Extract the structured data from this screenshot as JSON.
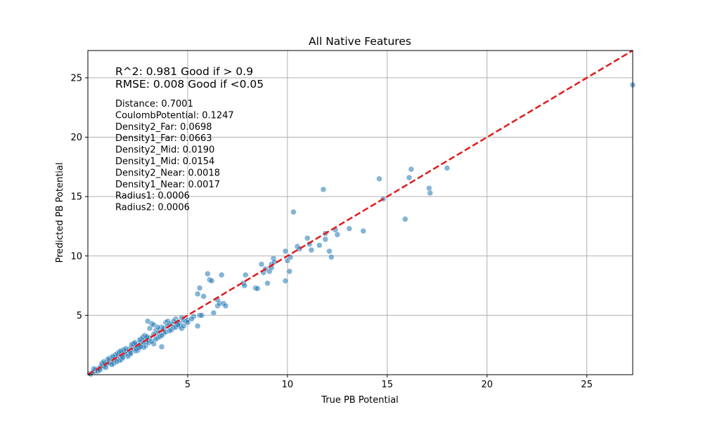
{
  "chart_data": {
    "type": "scatter",
    "title": "All Native Features",
    "xlabel": "True PB Potential",
    "ylabel": "Predicted PB Potential",
    "xlim": [
      0.0,
      27.3
    ],
    "ylim": [
      0.0,
      27.3
    ],
    "xticks": [
      5,
      10,
      15,
      20,
      25
    ],
    "yticks": [
      5,
      10,
      15,
      20,
      25
    ],
    "grid": true,
    "point_color": "#1f77b4",
    "reference_line": {
      "style": "dashed",
      "color": "#e31a1c",
      "from": [
        0,
        0
      ],
      "to": [
        27.3,
        27.3
      ]
    },
    "stats": [
      "R^2: 0.981 Good if > 0.9",
      "RMSE: 0.008 Good if <0.05"
    ],
    "feature_importances": [
      "Distance: 0.7001",
      "CoulombPotential: 0.1247",
      "Density2_Far: 0.0698",
      "Density1_Far: 0.0663",
      "Density2_Mid: 0.0190",
      "Density1_Mid: 0.0154",
      "Density2_Near: 0.0018",
      "Density1_Near: 0.0017",
      "Radius1: 0.0006",
      "Radius2: 0.0006"
    ],
    "points": [
      [
        0.1,
        0.1
      ],
      [
        0.15,
        0.05
      ],
      [
        0.2,
        0.15
      ],
      [
        0.25,
        0.2
      ],
      [
        0.3,
        0.28
      ],
      [
        0.35,
        0.3
      ],
      [
        0.4,
        0.42
      ],
      [
        0.45,
        0.38
      ],
      [
        0.5,
        0.5
      ],
      [
        0.55,
        0.52
      ],
      [
        0.6,
        0.55
      ],
      [
        0.65,
        0.7
      ],
      [
        0.7,
        0.65
      ],
      [
        0.75,
        0.8
      ],
      [
        0.8,
        0.72
      ],
      [
        0.85,
        0.9
      ],
      [
        0.9,
        0.85
      ],
      [
        0.95,
        1.0
      ],
      [
        1.0,
        0.95
      ],
      [
        1.05,
        1.1
      ],
      [
        1.1,
        1.0
      ],
      [
        1.15,
        1.2
      ],
      [
        1.2,
        1.15
      ],
      [
        1.25,
        1.3
      ],
      [
        1.3,
        1.2
      ],
      [
        1.35,
        1.45
      ],
      [
        1.4,
        1.35
      ],
      [
        1.45,
        1.5
      ],
      [
        1.5,
        1.4
      ],
      [
        1.55,
        1.6
      ],
      [
        1.6,
        1.55
      ],
      [
        1.65,
        1.7
      ],
      [
        1.7,
        1.6
      ],
      [
        1.75,
        1.85
      ],
      [
        1.8,
        1.7
      ],
      [
        1.85,
        1.9
      ],
      [
        1.9,
        1.8
      ],
      [
        1.95,
        2.0
      ],
      [
        2.0,
        1.9
      ],
      [
        2.05,
        2.1
      ],
      [
        2.1,
        2.0
      ],
      [
        2.15,
        2.25
      ],
      [
        2.2,
        2.1
      ],
      [
        2.25,
        2.3
      ],
      [
        2.3,
        2.2
      ],
      [
        2.35,
        2.4
      ],
      [
        2.4,
        2.3
      ],
      [
        2.45,
        2.5
      ],
      [
        2.5,
        2.45
      ],
      [
        2.55,
        2.6
      ],
      [
        2.6,
        2.5
      ],
      [
        2.65,
        2.75
      ],
      [
        2.7,
        2.6
      ],
      [
        2.75,
        2.8
      ],
      [
        2.8,
        2.7
      ],
      [
        2.85,
        2.9
      ],
      [
        2.9,
        2.8
      ],
      [
        2.95,
        3.0
      ],
      [
        3.0,
        2.9
      ],
      [
        3.1,
        3.1
      ],
      [
        0.3,
        0.5
      ],
      [
        0.5,
        0.3
      ],
      [
        0.7,
        0.95
      ],
      [
        0.9,
        0.6
      ],
      [
        1.1,
        1.4
      ],
      [
        1.3,
        0.95
      ],
      [
        1.5,
        1.75
      ],
      [
        1.7,
        1.3
      ],
      [
        1.9,
        2.2
      ],
      [
        2.1,
        1.7
      ],
      [
        2.3,
        2.6
      ],
      [
        2.5,
        2.05
      ],
      [
        2.7,
        3.0
      ],
      [
        2.9,
        2.45
      ],
      [
        1.0,
        1.3
      ],
      [
        1.2,
        0.85
      ],
      [
        1.4,
        1.7
      ],
      [
        1.6,
        1.2
      ],
      [
        1.8,
        2.1
      ],
      [
        2.0,
        1.55
      ],
      [
        2.2,
        2.55
      ],
      [
        2.4,
        2.0
      ],
      [
        2.6,
        2.95
      ],
      [
        2.8,
        2.3
      ],
      [
        0.8,
        1.1
      ],
      [
        0.6,
        0.4
      ],
      [
        1.75,
        1.45
      ],
      [
        2.35,
        2.7
      ],
      [
        1.55,
        1.9
      ],
      [
        2.15,
        1.8
      ],
      [
        1.25,
        1.55
      ],
      [
        1.45,
        1.1
      ],
      [
        1.65,
        2.0
      ],
      [
        2.45,
        2.15
      ],
      [
        2.75,
        3.15
      ],
      [
        2.55,
        2.25
      ],
      [
        2.85,
        3.3
      ],
      [
        2.65,
        2.35
      ],
      [
        2.95,
        3.2
      ],
      [
        3.05,
        2.7
      ],
      [
        3.0,
        4.5
      ],
      [
        3.2,
        4.3
      ],
      [
        3.3,
        4.2
      ],
      [
        3.1,
        3.9
      ],
      [
        3.4,
        3.7
      ],
      [
        3.5,
        3.5
      ],
      [
        3.6,
        3.8
      ],
      [
        3.7,
        4.0
      ],
      [
        3.8,
        3.9
      ],
      [
        3.9,
        4.4
      ],
      [
        4.0,
        4.5
      ],
      [
        4.1,
        4.3
      ],
      [
        4.2,
        4.2
      ],
      [
        4.3,
        4.0
      ],
      [
        4.4,
        4.7
      ],
      [
        4.5,
        4.4
      ],
      [
        4.6,
        4.3
      ],
      [
        4.7,
        4.8
      ],
      [
        4.8,
        4.6
      ],
      [
        4.9,
        4.5
      ],
      [
        5.0,
        4.6
      ],
      [
        4.6,
        4.1
      ],
      [
        4.7,
        3.9
      ],
      [
        3.7,
        2.35
      ],
      [
        3.3,
        2.6
      ],
      [
        3.5,
        3.1
      ],
      [
        3.2,
        2.8
      ],
      [
        3.4,
        3.0
      ],
      [
        3.6,
        3.2
      ],
      [
        3.8,
        3.5
      ],
      [
        3.9,
        3.6
      ],
      [
        4.0,
        4.1
      ],
      [
        4.2,
        3.8
      ],
      [
        4.4,
        4.0
      ],
      [
        4.1,
        3.7
      ],
      [
        3.3,
        3.4
      ],
      [
        3.5,
        4.0
      ],
      [
        3.7,
        3.3
      ],
      [
        4.3,
        4.5
      ],
      [
        4.5,
        4.2
      ],
      [
        5.5,
        4.1
      ],
      [
        5.6,
        5.0
      ],
      [
        5.7,
        5.0
      ],
      [
        5.3,
        4.9
      ],
      [
        5.0,
        4.4
      ],
      [
        4.8,
        4.1
      ],
      [
        5.2,
        4.7
      ],
      [
        5.5,
        6.8
      ],
      [
        5.6,
        7.3
      ],
      [
        5.8,
        6.6
      ],
      [
        6.0,
        8.5
      ],
      [
        6.1,
        8.0
      ],
      [
        6.2,
        7.9
      ],
      [
        6.3,
        5.2
      ],
      [
        6.5,
        5.8
      ],
      [
        6.6,
        6.0
      ],
      [
        6.7,
        8.4
      ],
      [
        6.8,
        6.0
      ],
      [
        6.9,
        5.8
      ],
      [
        6.5,
        6.3
      ],
      [
        7.8,
        7.7
      ],
      [
        7.9,
        8.4
      ],
      [
        7.85,
        7.5
      ],
      [
        8.4,
        7.3
      ],
      [
        8.5,
        7.25
      ],
      [
        8.7,
        9.3
      ],
      [
        8.8,
        8.6
      ],
      [
        8.9,
        8.9
      ],
      [
        9.0,
        7.7
      ],
      [
        9.1,
        8.7
      ],
      [
        9.2,
        9.3
      ],
      [
        9.3,
        9.8
      ],
      [
        9.35,
        9.5
      ],
      [
        9.2,
        9.0
      ],
      [
        9.9,
        10.4
      ],
      [
        9.9,
        7.9
      ],
      [
        10.0,
        9.6
      ],
      [
        10.1,
        8.7
      ],
      [
        10.15,
        9.9
      ],
      [
        10.3,
        13.7
      ],
      [
        10.5,
        10.8
      ],
      [
        10.6,
        10.6
      ],
      [
        11.0,
        11.5
      ],
      [
        11.1,
        11.0
      ],
      [
        11.2,
        10.5
      ],
      [
        11.6,
        10.9
      ],
      [
        11.8,
        15.6
      ],
      [
        11.9,
        11.4
      ],
      [
        11.9,
        11.9
      ],
      [
        12.1,
        10.4
      ],
      [
        12.2,
        9.9
      ],
      [
        12.4,
        12.2
      ],
      [
        12.5,
        11.8
      ],
      [
        13.1,
        12.3
      ],
      [
        13.8,
        12.1
      ],
      [
        14.6,
        16.5
      ],
      [
        14.8,
        14.8
      ],
      [
        15.9,
        13.1
      ],
      [
        16.1,
        16.6
      ],
      [
        16.2,
        17.3
      ],
      [
        17.1,
        15.7
      ],
      [
        17.15,
        15.3
      ],
      [
        18.0,
        17.4
      ],
      [
        27.3,
        24.4
      ]
    ]
  }
}
